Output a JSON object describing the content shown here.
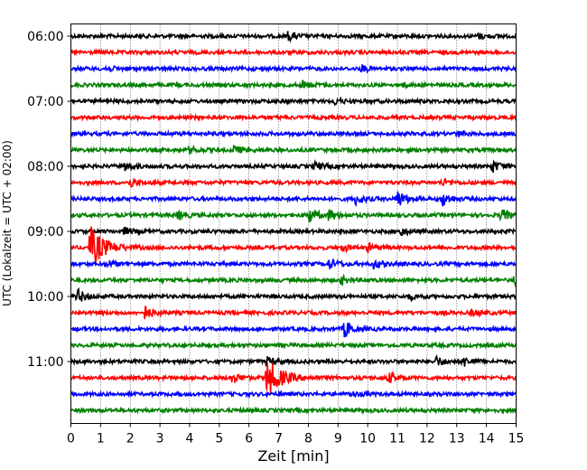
{
  "chart_data": {
    "type": "line",
    "xlabel": "Zeit  [min]",
    "ylabel": "UTC (Lokalzeit = UTC + 02:00)",
    "xlim": [
      0,
      15
    ],
    "x_ticks": [
      0,
      1,
      2,
      3,
      4,
      5,
      6,
      7,
      8,
      9,
      10,
      11,
      12,
      13,
      14,
      15
    ],
    "y_tick_labels": [
      "06:00",
      "07:00",
      "08:00",
      "09:00",
      "10:00",
      "11:00"
    ],
    "trace_interval_minutes": 15,
    "start_time": "06:00",
    "trace_count": 24,
    "color_cycle": [
      "#000000",
      "#ff0000",
      "#0000ff",
      "#008000"
    ],
    "grid": "vertical-dotted",
    "traces": [
      {
        "start": "06:00",
        "events": [
          {
            "t": 7.3,
            "amp": 0.5
          },
          {
            "t": 13.7,
            "amp": 0.3
          }
        ]
      },
      {
        "start": "06:15",
        "events": []
      },
      {
        "start": "06:30",
        "events": [
          {
            "t": 1.2,
            "amp": 0.3
          },
          {
            "t": 9.8,
            "amp": 0.35
          }
        ]
      },
      {
        "start": "06:45",
        "events": [
          {
            "t": 7.8,
            "amp": 0.45
          },
          {
            "t": 11.1,
            "amp": 0.3
          }
        ]
      },
      {
        "start": "07:00",
        "events": [
          {
            "t": 8.9,
            "amp": 0.35
          }
        ]
      },
      {
        "start": "07:15",
        "events": []
      },
      {
        "start": "07:30",
        "events": [
          {
            "t": 13.0,
            "amp": 0.3
          }
        ]
      },
      {
        "start": "07:45",
        "events": [
          {
            "t": 4.0,
            "amp": 0.35
          },
          {
            "t": 5.5,
            "amp": 0.5
          }
        ]
      },
      {
        "start": "08:00",
        "events": [
          {
            "t": 1.8,
            "amp": 0.5
          },
          {
            "t": 8.2,
            "amp": 0.45
          },
          {
            "t": 14.2,
            "amp": 0.7
          }
        ]
      },
      {
        "start": "08:15",
        "events": [
          {
            "t": 2.0,
            "amp": 0.5
          },
          {
            "t": 12.5,
            "amp": 0.4
          }
        ]
      },
      {
        "start": "08:30",
        "events": [
          {
            "t": 9.6,
            "amp": 0.6
          },
          {
            "t": 11.0,
            "amp": 1.1
          },
          {
            "t": 12.5,
            "amp": 0.9
          }
        ]
      },
      {
        "start": "08:45",
        "events": [
          {
            "t": 3.6,
            "amp": 0.5
          },
          {
            "t": 8.0,
            "amp": 1.0
          },
          {
            "t": 8.7,
            "amp": 0.6
          },
          {
            "t": 14.5,
            "amp": 0.7
          }
        ]
      },
      {
        "start": "09:00",
        "events": [
          {
            "t": 1.8,
            "amp": 0.4
          },
          {
            "t": 11.1,
            "amp": 0.5
          }
        ]
      },
      {
        "start": "09:15",
        "events": [
          {
            "t": 0.65,
            "amp": 2.6
          },
          {
            "t": 9.1,
            "amp": 0.5
          },
          {
            "t": 10.0,
            "amp": 0.5
          }
        ]
      },
      {
        "start": "09:30",
        "events": [
          {
            "t": 1.2,
            "amp": 0.4
          },
          {
            "t": 8.7,
            "amp": 0.6
          },
          {
            "t": 10.2,
            "amp": 0.5
          }
        ]
      },
      {
        "start": "09:45",
        "events": [
          {
            "t": 9.1,
            "amp": 0.45
          },
          {
            "t": 14.9,
            "amp": 0.9
          }
        ]
      },
      {
        "start": "10:00",
        "events": [
          {
            "t": 0.2,
            "amp": 0.9
          },
          {
            "t": 11.4,
            "amp": 0.3
          }
        ]
      },
      {
        "start": "10:15",
        "events": [
          {
            "t": 2.5,
            "amp": 0.8
          },
          {
            "t": 13.5,
            "amp": 0.4
          }
        ]
      },
      {
        "start": "10:30",
        "events": [
          {
            "t": 9.2,
            "amp": 1.1
          }
        ]
      },
      {
        "start": "10:45",
        "events": []
      },
      {
        "start": "11:00",
        "events": [
          {
            "t": 6.6,
            "amp": 0.5
          },
          {
            "t": 12.3,
            "amp": 0.6
          },
          {
            "t": 13.2,
            "amp": 0.6
          }
        ]
      },
      {
        "start": "11:15",
        "events": [
          {
            "t": 5.4,
            "amp": 0.7
          },
          {
            "t": 6.6,
            "amp": 2.4
          },
          {
            "t": 10.7,
            "amp": 0.6
          }
        ]
      },
      {
        "start": "11:30",
        "events": [
          {
            "t": 9.4,
            "amp": 0.3
          }
        ]
      },
      {
        "start": "11:45",
        "events": []
      }
    ]
  }
}
